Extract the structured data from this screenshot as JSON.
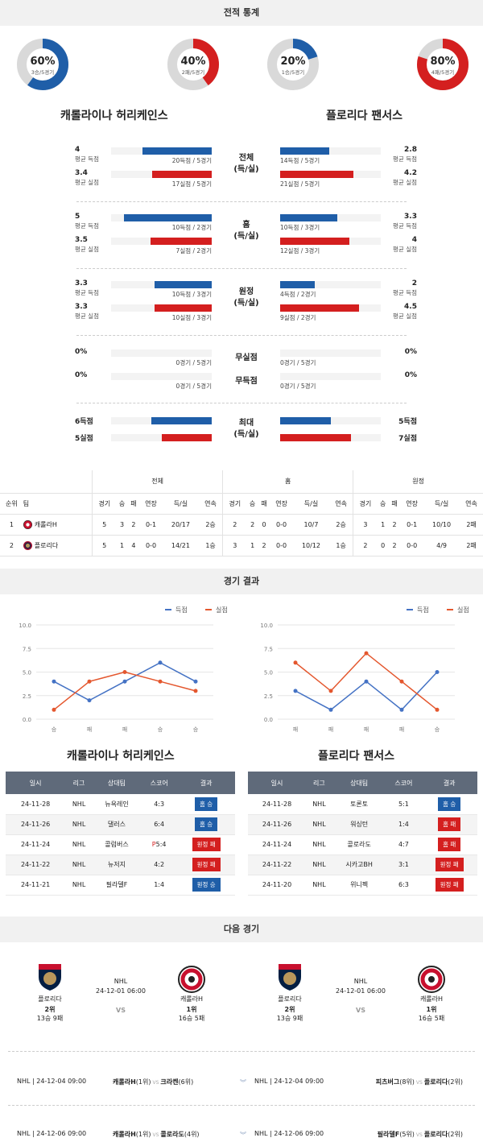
{
  "sections": {
    "stats": "전적 통계",
    "results": "경기 결과",
    "next": "다음 경기"
  },
  "colors": {
    "blue": "#1f5ea8",
    "red": "#d41f1f",
    "gray": "#d9d9d9"
  },
  "donuts": [
    {
      "pct": "60%",
      "sub": "3승/5경기",
      "value": 0.6,
      "color": "#1f5ea8"
    },
    {
      "pct": "40%",
      "sub": "2패/5경기",
      "value": 0.4,
      "color": "#d41f1f"
    },
    {
      "pct": "20%",
      "sub": "1승/5경기",
      "value": 0.2,
      "color": "#1f5ea8"
    },
    {
      "pct": "80%",
      "sub": "4패/5경기",
      "value": 0.8,
      "color": "#d41f1f"
    }
  ],
  "teams": {
    "home": "캐롤라이나 허리케인스",
    "away": "플로리다 팬서스"
  },
  "stat_rows": [
    {
      "label": "전체",
      "label2": "(득/실)",
      "left": [
        {
          "val": "4",
          "lab": "평균 득점",
          "cap": "20득점 / 5경기",
          "frac": 0.69
        },
        {
          "val": "3.4",
          "lab": "평균 실점",
          "cap": "17실점 / 5경기",
          "frac": 0.59
        }
      ],
      "right": [
        {
          "val": "2.8",
          "lab": "평균 득점",
          "cap": "14득점 / 5경기",
          "frac": 0.49
        },
        {
          "val": "4.2",
          "lab": "평균 실점",
          "cap": "21실점 / 5경기",
          "frac": 0.73
        }
      ]
    },
    {
      "label": "홈",
      "label2": "(득/실)",
      "left": [
        {
          "val": "5",
          "lab": "평균 득점",
          "cap": "10득점 / 2경기",
          "frac": 0.87
        },
        {
          "val": "3.5",
          "lab": "평균 실점",
          "cap": "7실점 / 2경기",
          "frac": 0.61
        }
      ],
      "right": [
        {
          "val": "3.3",
          "lab": "평균 득점",
          "cap": "10득점 / 3경기",
          "frac": 0.57
        },
        {
          "val": "4",
          "lab": "평균 실점",
          "cap": "12실점 / 3경기",
          "frac": 0.69
        }
      ]
    },
    {
      "label": "원정",
      "label2": "(득/실)",
      "left": [
        {
          "val": "3.3",
          "lab": "평균 득점",
          "cap": "10득점 / 3경기",
          "frac": 0.57
        },
        {
          "val": "3.3",
          "lab": "평균 실점",
          "cap": "10실점 / 3경기",
          "frac": 0.57
        }
      ],
      "right": [
        {
          "val": "2",
          "lab": "평균 득점",
          "cap": "4득점 / 2경기",
          "frac": 0.34
        },
        {
          "val": "4.5",
          "lab": "평균 실점",
          "cap": "9실점 / 2경기",
          "frac": 0.78
        }
      ]
    }
  ],
  "zero_rows": [
    {
      "label": "무실점",
      "left": "0%",
      "right": "0%",
      "lcap": "0경기 / 5경기",
      "rcap": "0경기 / 5경기"
    },
    {
      "label": "무득점",
      "left": "0%",
      "right": "0%",
      "lcap": "0경기 / 5경기",
      "rcap": "0경기 / 5경기"
    }
  ],
  "max_row": {
    "label": "최대",
    "label2": "(득/실)",
    "l1": "6득점",
    "l2": "5실점",
    "r1": "5득점",
    "r2": "7실점",
    "lf1": 0.6,
    "lf2": 0.5,
    "rf1": 0.5,
    "rf2": 0.7
  },
  "standings": {
    "groups": [
      "전체",
      "홈",
      "원정"
    ],
    "cols": [
      "순위",
      "팀",
      "경기",
      "승",
      "패",
      "연장",
      "득/실",
      "연속",
      "경기",
      "승",
      "패",
      "연장",
      "득/실",
      "연속",
      "경기",
      "승",
      "패",
      "연장",
      "득/실",
      "연속"
    ],
    "rows": [
      [
        "1",
        "캐롤라H",
        "5",
        "3",
        "2",
        "0-1",
        "20/17",
        "2승",
        "2",
        "2",
        "0",
        "0-0",
        "10/7",
        "2승",
        "3",
        "1",
        "2",
        "0-1",
        "10/10",
        "2패"
      ],
      [
        "2",
        "플로리다",
        "5",
        "1",
        "4",
        "0-0",
        "14/21",
        "1승",
        "3",
        "1",
        "2",
        "0-0",
        "10/12",
        "1승",
        "2",
        "0",
        "2",
        "0-0",
        "4/9",
        "2패"
      ]
    ]
  },
  "legend": {
    "scored": "득점",
    "conceded": "실점"
  },
  "chart_data": [
    {
      "type": "line",
      "title": "",
      "x": [
        "승",
        "패",
        "패",
        "승",
        "승"
      ],
      "ylim": [
        0,
        10
      ],
      "yticks": [
        "0.0",
        "2.5",
        "5.0",
        "7.5",
        "10.0"
      ],
      "series": [
        {
          "name": "득점",
          "values": [
            4,
            2,
            4,
            6,
            4
          ],
          "color": "#4472c4"
        },
        {
          "name": "실점",
          "values": [
            1,
            4,
            5,
            4,
            3
          ],
          "color": "#e4572e"
        }
      ]
    },
    {
      "type": "line",
      "title": "",
      "x": [
        "패",
        "패",
        "패",
        "패",
        "승"
      ],
      "ylim": [
        0,
        10
      ],
      "yticks": [
        "0.0",
        "2.5",
        "5.0",
        "7.5",
        "10.0"
      ],
      "series": [
        {
          "name": "득점",
          "values": [
            3,
            1,
            4,
            1,
            5
          ],
          "color": "#4472c4"
        },
        {
          "name": "실점",
          "values": [
            6,
            3,
            7,
            4,
            1
          ],
          "color": "#e4572e"
        }
      ]
    }
  ],
  "results": {
    "headers": [
      "일시",
      "리그",
      "상대팀",
      "스코어",
      "결과"
    ],
    "left": [
      {
        "date": "24-11-28",
        "league": "NHL",
        "opp": "뉴욕레인",
        "score": "4:3",
        "result": "홈 승",
        "color": "#1f5ea8"
      },
      {
        "date": "24-11-26",
        "league": "NHL",
        "opp": "댈러스",
        "score": "6:4",
        "result": "홈 승",
        "color": "#1f5ea8"
      },
      {
        "date": "24-11-24",
        "league": "NHL",
        "opp": "콜럼버스",
        "score_a": "P",
        "score": "5:4",
        "result": "원정 패",
        "color": "#d41f1f"
      },
      {
        "date": "24-11-22",
        "league": "NHL",
        "opp": "뉴저지",
        "score": "4:2",
        "result": "원정 패",
        "color": "#d41f1f"
      },
      {
        "date": "24-11-21",
        "league": "NHL",
        "opp": "필라델F",
        "score": "1:4",
        "result": "원정 승",
        "color": "#1f5ea8"
      }
    ],
    "right": [
      {
        "date": "24-11-28",
        "league": "NHL",
        "opp": "토론토",
        "score": "5:1",
        "result": "홈 승",
        "color": "#1f5ea8"
      },
      {
        "date": "24-11-26",
        "league": "NHL",
        "opp": "워싱턴",
        "score": "1:4",
        "result": "홈 패",
        "color": "#d41f1f"
      },
      {
        "date": "24-11-24",
        "league": "NHL",
        "opp": "콜로라도",
        "score": "4:7",
        "result": "홈 패",
        "color": "#d41f1f"
      },
      {
        "date": "24-11-22",
        "league": "NHL",
        "opp": "시카고BH",
        "score": "3:1",
        "result": "원정 패",
        "color": "#d41f1f"
      },
      {
        "date": "24-11-20",
        "league": "NHL",
        "opp": "위니펙",
        "score": "6:3",
        "result": "원정 패",
        "color": "#d41f1f"
      }
    ]
  },
  "next": {
    "cards": [
      {
        "league": "NHL",
        "datetime": "24-12-01 06:00",
        "vs": "VS",
        "home": "플로리다",
        "home_rank": "2위",
        "home_rec": "13승 9패",
        "away": "캐롤라H",
        "away_rank": "1위",
        "away_rec": "16승 5패"
      },
      {
        "league": "NHL",
        "datetime": "24-12-01 06:00",
        "vs": "VS",
        "home": "플로리다",
        "home_rank": "2위",
        "home_rec": "13승 9패",
        "away": "캐롤라H",
        "away_rank": "1위",
        "away_rec": "16승 5패"
      }
    ],
    "matches": [
      {
        "l_info": "NHL | 24-12-04 09:00",
        "l_team1": "캐롤라H",
        "l_rank1": "(1위)",
        "l_team2": "크라켄",
        "l_rank2": "(6위)",
        "r_info": "NHL | 24-12-04 09:00",
        "r_team1": "피츠버그",
        "r_rank1": "(8위)",
        "r_team2": "플로리다",
        "r_rank2": "(2위)"
      },
      {
        "l_info": "NHL | 24-12-06 09:00",
        "l_team1": "캐롤라H",
        "l_rank1": "(1위)",
        "l_team2": "콜로라도",
        "l_rank2": "(4위)",
        "r_info": "NHL | 24-12-06 09:00",
        "r_team1": "필라델F",
        "r_rank1": "(5위)",
        "r_team2": "플로리다",
        "r_rank2": "(2위)"
      }
    ],
    "vs_small": "VS"
  }
}
